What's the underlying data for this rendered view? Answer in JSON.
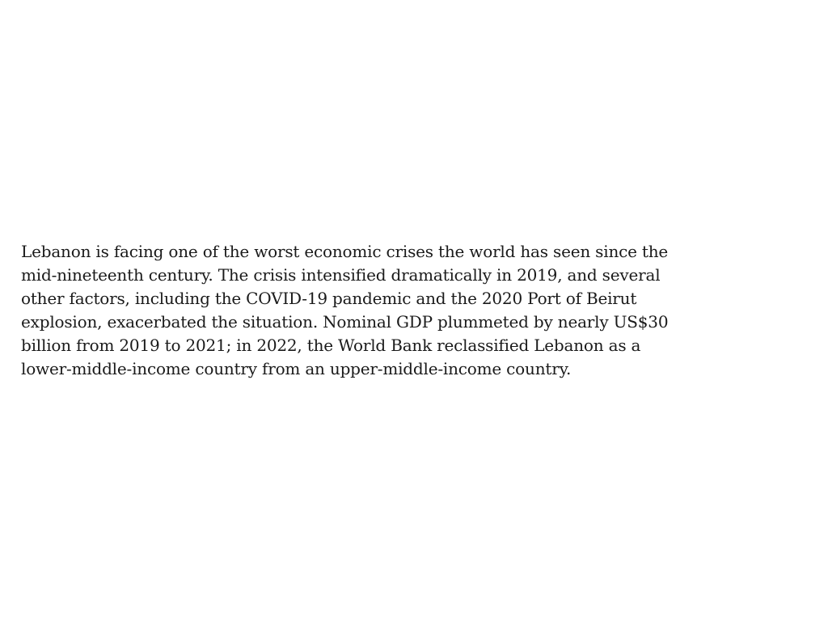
{
  "document": {
    "paragraph_lines": [
      "Lebanon is facing one of the worst economic crises the world has seen since the",
      "mid-nineteenth century. The crisis intensified dramatically in 2019, and several",
      "other factors, including the COVID-19 pandemic and the 2020 Port of Beirut",
      "explosion, exacerbated the situation. Nominal GDP plummeted by nearly US$30",
      "billion from 2019 to 2021; in 2022, the World Bank reclassified Lebanon as a",
      "lower-middle-income country from an upper-middle-income country."
    ]
  }
}
